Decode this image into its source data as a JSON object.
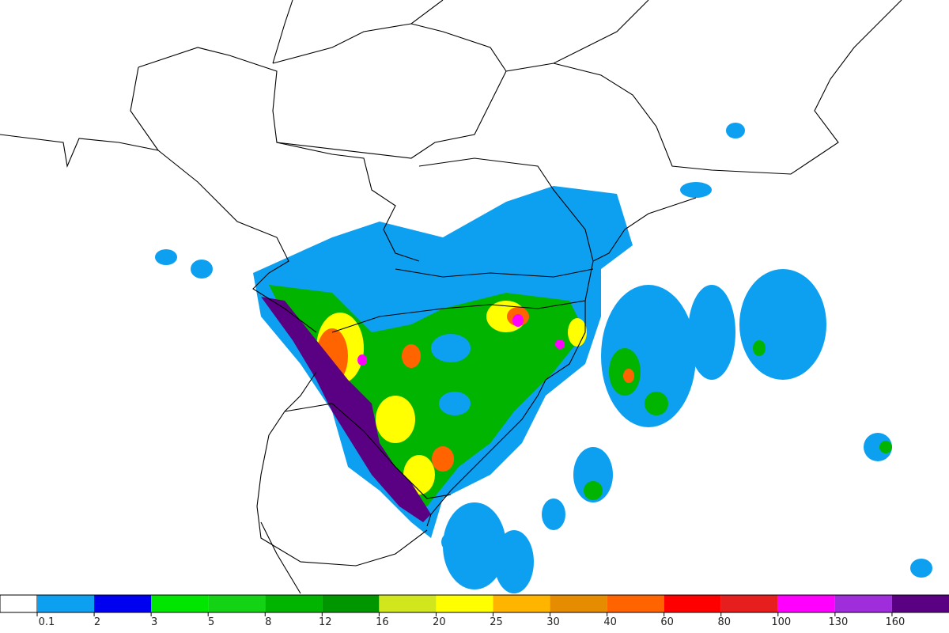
{
  "legend": {
    "ticks": [
      0.1,
      2,
      3,
      5,
      8,
      12,
      16,
      20,
      25,
      30,
      40,
      60,
      80,
      100,
      130,
      160
    ],
    "colors": [
      "#0ea0f0",
      "#0000f0",
      "#00e600",
      "#14d214",
      "#00b400",
      "#009600",
      "#d2e61e",
      "#ffff00",
      "#ffb400",
      "#e68c00",
      "#ff6400",
      "#ff0000",
      "#e61e1e",
      "#ff00ff",
      "#a02ddc",
      "#5a0082"
    ]
  }
}
